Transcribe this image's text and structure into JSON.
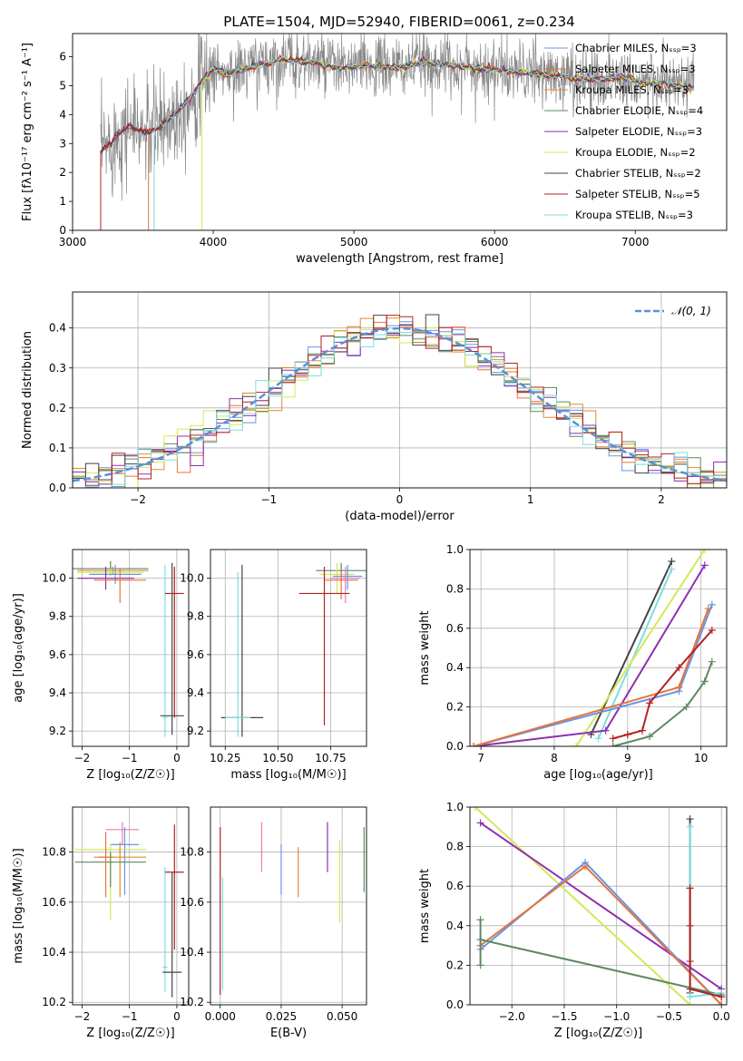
{
  "title": "PLATE=1504, MJD=52940, FIBERID=0061, z=0.234",
  "colors": {
    "chabrier_miles": "#6495ED",
    "salpeter_miles": "#E8733A",
    "kroupa_miles": "#E08C2E",
    "chabrier_elodie": "#5B8A5F",
    "salpeter_elodie": "#8E2FB0",
    "kroupa_elodie": "#D4E857",
    "chabrier_stelib": "#444444",
    "salpeter_stelib": "#B22222",
    "kroupa_stelib": "#7FDDDD",
    "pink": "#E87DB8",
    "gaussian": "#5B8FD9"
  },
  "chart_data": [
    {
      "id": "spectrum",
      "type": "line",
      "xlabel": "wavelength [Angstrom, rest frame]",
      "ylabel": "Flux [fλ10⁻¹⁷ erg cm⁻² s⁻¹ A⁻¹]",
      "xlim": [
        3000,
        7650
      ],
      "ylim": [
        0,
        6.8
      ],
      "xticks": [
        "3000",
        "4000",
        "5000",
        "6000",
        "7000"
      ],
      "yticks": [
        "0",
        "1",
        "2",
        "3",
        "4",
        "5",
        "6"
      ],
      "legend": {
        "placement": "right",
        "entries": [
          "Chabrier MILES, Nₛₛₚ=3",
          "Salpeter MILES, Nₛₛₚ=3",
          "Kroupa MILES, Nₛₛₚ=3",
          "Chabrier ELODIE, Nₛₛₚ=4",
          "Salpeter ELODIE, Nₛₛₚ=3",
          "Kroupa ELODIE, Nₛₛₚ=2",
          "Chabrier STELIB, Nₛₛₚ=2",
          "Salpeter STELIB, Nₛₛₚ=5",
          "Kroupa STELIB, Nₛₛₚ=3"
        ]
      },
      "model_x": [
        3200,
        3300,
        3400,
        3500,
        3600,
        3700,
        3800,
        3900,
        4000,
        4100,
        4300,
        4500,
        4700,
        4900,
        5100,
        5300,
        5500,
        5700,
        5900,
        6100,
        6300,
        6500,
        6700,
        6900,
        7100,
        7300,
        7400
      ],
      "model_y": [
        2.7,
        3.2,
        3.6,
        3.4,
        3.5,
        3.9,
        4.4,
        5.0,
        5.6,
        5.4,
        5.7,
        5.9,
        5.8,
        5.6,
        5.7,
        5.6,
        5.8,
        5.7,
        5.6,
        5.5,
        5.4,
        5.3,
        5.2,
        5.3,
        5.1,
        5.0,
        4.9
      ],
      "model_start_x": [
        3200,
        3540,
        3200,
        3200,
        3200,
        3920,
        3200,
        3200,
        3580
      ]
    },
    {
      "id": "residuals",
      "type": "histogram",
      "xlabel": "(data-model)/error",
      "ylabel": "Normed distribution",
      "xlim": [
        -2.5,
        2.5
      ],
      "ylim": [
        0,
        0.49
      ],
      "xticks": [
        "−2",
        "−1",
        "0",
        "1",
        "2"
      ],
      "yticks": [
        "0.0",
        "0.1",
        "0.2",
        "0.3",
        "0.4"
      ],
      "grid": true,
      "legend": {
        "placement": "top-right",
        "entries": [
          "𝒩(0, 1)"
        ]
      },
      "bin_width": 0.1
    },
    {
      "id": "age_vs_z",
      "type": "errorbar",
      "xlabel": "Z [log₁₀(Z/Z☉)]",
      "ylabel": "age  [log₁₀(age/yr)]",
      "xlim": [
        -2.2,
        0.25
      ],
      "ylim": [
        9.12,
        10.15
      ],
      "xticks": [
        "−2",
        "−1",
        "0"
      ],
      "yticks": [
        "9.2",
        "9.4",
        "9.6",
        "9.8",
        "10.0"
      ],
      "grid": true,
      "points": [
        {
          "x": -1.4,
          "xerr": 0.8,
          "y": 10.05,
          "yerr": [
            0.04,
            0.04
          ],
          "color": "chabrier_elodie"
        },
        {
          "x": -1.35,
          "xerr": 0.75,
          "y": 10.04,
          "yerr": [
            0.02,
            0.02
          ],
          "color": "kroupa_miles"
        },
        {
          "x": -1.4,
          "xerr": 0.7,
          "y": 10.03,
          "yerr": [
            0.02,
            0.02
          ],
          "color": "kroupa_elodie"
        },
        {
          "x": -1.3,
          "xerr": 0.55,
          "y": 10.02,
          "yerr": [
            0.05,
            0.05
          ],
          "color": "chabrier_miles"
        },
        {
          "x": -1.5,
          "xerr": 0.6,
          "y": 10.0,
          "yerr": [
            0.06,
            0.06
          ],
          "color": "salpeter_elodie"
        },
        {
          "x": -1.2,
          "xerr": 0.55,
          "y": 9.99,
          "yerr": [
            0.12,
            0.06
          ],
          "color": "salpeter_miles"
        },
        {
          "x": -0.25,
          "xerr": 0.05,
          "y": 9.27,
          "yerr": [
            0.1,
            0.8
          ],
          "color": "kroupa_stelib"
        },
        {
          "x": -0.1,
          "xerr": 0.25,
          "y": 9.28,
          "yerr": [
            0.1,
            0.8
          ],
          "color": "chabrier_stelib"
        },
        {
          "x": -0.05,
          "xerr": 0.2,
          "y": 9.92,
          "yerr": [
            0.65,
            0.14
          ],
          "color": "salpeter_stelib"
        }
      ]
    },
    {
      "id": "age_vs_mass",
      "type": "errorbar",
      "xlabel": "mass [log₁₀(M/M☉)]",
      "ylabel": "",
      "xlim": [
        10.18,
        10.92
      ],
      "ylim": [
        9.12,
        10.15
      ],
      "xticks": [
        "10.25",
        "10.50",
        "10.75"
      ],
      "yticks": [
        "9.2",
        "9.4",
        "9.6",
        "9.8",
        "10.0"
      ],
      "grid": true,
      "points": [
        {
          "x": 10.8,
          "xerr": 0.12,
          "y": 10.04,
          "yerr": [
            0.06,
            0.04
          ],
          "color": "chabrier_elodie"
        },
        {
          "x": 10.78,
          "xerr": 0.08,
          "y": 10.02,
          "yerr": [
            0.1,
            0.06
          ],
          "color": "kroupa_elodie"
        },
        {
          "x": 10.83,
          "xerr": 0.07,
          "y": 10.01,
          "yerr": [
            0.07,
            0.06
          ],
          "color": "chabrier_miles"
        },
        {
          "x": 10.82,
          "xerr": 0.07,
          "y": 10.0,
          "yerr": [
            0.13,
            0.06
          ],
          "color": "pink"
        },
        {
          "x": 10.8,
          "xerr": 0.08,
          "y": 9.99,
          "yerr": [
            0.1,
            0.05
          ],
          "color": "salpeter_miles"
        },
        {
          "x": 10.33,
          "xerr": 0.1,
          "y": 9.27,
          "yerr": [
            0.1,
            0.8
          ],
          "color": "chabrier_stelib"
        },
        {
          "x": 10.31,
          "xerr": 0.06,
          "y": 9.27,
          "yerr": [
            0.1,
            0.76
          ],
          "color": "kroupa_stelib"
        },
        {
          "x": 10.72,
          "xerr": 0.12,
          "y": 9.92,
          "yerr": [
            0.69,
            0.14
          ],
          "color": "salpeter_stelib"
        }
      ]
    },
    {
      "id": "weight_vs_age",
      "type": "line",
      "xlabel": "age  [log₁₀(age/yr)]",
      "ylabel": "mass weight",
      "xlim": [
        6.85,
        10.35
      ],
      "ylim": [
        0,
        1
      ],
      "xticks": [
        "7",
        "8",
        "9",
        "10"
      ],
      "yticks": [
        "0.0",
        "0.2",
        "0.4",
        "0.6",
        "0.8",
        "1.0"
      ],
      "grid": true,
      "series": [
        {
          "color": "chabrier_stelib",
          "x": [
            8.5,
            9.6
          ],
          "y": [
            0.06,
            0.94
          ]
        },
        {
          "color": "kroupa_stelib",
          "x": [
            8.6,
            9.6
          ],
          "y": [
            0.04,
            0.9
          ]
        },
        {
          "color": "kroupa_elodie",
          "x": [
            8.3,
            10.05
          ],
          "y": [
            0.0,
            1.0
          ]
        },
        {
          "color": "salpeter_elodie",
          "x": [
            6.9,
            8.7,
            10.05
          ],
          "y": [
            0.0,
            0.08,
            0.92
          ]
        },
        {
          "color": "chabrier_miles",
          "x": [
            6.9,
            9.7,
            10.15
          ],
          "y": [
            0.0,
            0.28,
            0.72
          ]
        },
        {
          "color": "salpeter_miles",
          "x": [
            6.9,
            9.7,
            10.1
          ],
          "y": [
            0.0,
            0.3,
            0.7
          ]
        },
        {
          "color": "salpeter_stelib",
          "x": [
            8.8,
            9.0,
            9.2,
            9.3,
            9.7,
            10.15
          ],
          "y": [
            0.04,
            0.06,
            0.08,
            0.22,
            0.4,
            0.59
          ]
        },
        {
          "color": "chabrier_elodie",
          "x": [
            8.8,
            9.3,
            9.8,
            10.05,
            10.15
          ],
          "y": [
            0.0,
            0.05,
            0.2,
            0.33,
            0.43
          ]
        }
      ]
    },
    {
      "id": "mass_vs_z",
      "type": "errorbar",
      "xlabel": "Z [log₁₀(Z/Z☉)]",
      "ylabel": "mass [log₁₀(M/M☉)]",
      "xlim": [
        -2.2,
        0.25
      ],
      "ylim": [
        10.19,
        10.98
      ],
      "xticks": [
        "−2",
        "−1",
        "0"
      ],
      "yticks": [
        "10.2",
        "10.4",
        "10.6",
        "10.8"
      ],
      "grid": true,
      "points": [
        {
          "x": -1.15,
          "xerr": 0.35,
          "y": 10.89,
          "yerr": [
            0.06,
            0.03
          ],
          "color": "pink"
        },
        {
          "x": -1.1,
          "xerr": 0.3,
          "y": 10.83,
          "yerr": [
            0.2,
            0.07
          ],
          "color": "chabrier_miles"
        },
        {
          "x": -1.4,
          "xerr": 0.75,
          "y": 10.81,
          "yerr": [
            0.28,
            0.02
          ],
          "color": "kroupa_elodie"
        },
        {
          "x": -1.2,
          "xerr": 0.55,
          "y": 10.78,
          "yerr": [
            0.16,
            0.06
          ],
          "color": "kroupa_miles"
        },
        {
          "x": -1.4,
          "xerr": 0.75,
          "y": 10.76,
          "yerr": [
            0.1,
            0.04
          ],
          "color": "chabrier_elodie"
        },
        {
          "x": -1.5,
          "xerr": 0.15,
          "y": 10.78,
          "yerr": [
            0.16,
            0.1
          ],
          "color": "salpeter_miles"
        },
        {
          "x": -0.25,
          "xerr": 0.05,
          "y": 10.34,
          "yerr": [
            0.1,
            0.4
          ],
          "color": "kroupa_stelib"
        },
        {
          "x": -0.1,
          "xerr": 0.2,
          "y": 10.32,
          "yerr": [
            0.1,
            0.4
          ],
          "color": "chabrier_stelib"
        },
        {
          "x": -0.05,
          "xerr": 0.2,
          "y": 10.72,
          "yerr": [
            0.31,
            0.19
          ],
          "color": "salpeter_stelib"
        }
      ]
    },
    {
      "id": "mass_vs_ebv",
      "type": "errorbar",
      "xlabel": "E(B-V)",
      "ylabel": "",
      "xlim": [
        -0.004,
        0.06
      ],
      "ylim": [
        10.19,
        10.98
      ],
      "xticks": [
        "0.000",
        "0.025",
        "0.050"
      ],
      "yticks": [
        "10.2",
        "10.4",
        "10.6",
        "10.8"
      ],
      "grid": true,
      "points": [
        {
          "x": 0.0,
          "y": 10.25,
          "yerr": [
            0.02,
            0.65
          ],
          "color": "salpeter_stelib"
        },
        {
          "x": 0.001,
          "y": 10.3,
          "yerr": [
            0.05,
            0.4
          ],
          "color": "kroupa_stelib"
        },
        {
          "x": 0.017,
          "y": 10.82,
          "yerr": [
            0.1,
            0.1
          ],
          "color": "pink"
        },
        {
          "x": 0.025,
          "y": 10.73,
          "yerr": [
            0.1,
            0.1
          ],
          "color": "chabrier_miles"
        },
        {
          "x": 0.032,
          "y": 10.72,
          "yerr": [
            0.1,
            0.1
          ],
          "color": "kroupa_miles"
        },
        {
          "x": 0.044,
          "y": 10.82,
          "yerr": [
            0.1,
            0.1
          ],
          "color": "salpeter_elodie"
        },
        {
          "x": 0.049,
          "y": 10.68,
          "yerr": [
            0.16,
            0.17
          ],
          "color": "kroupa_elodie"
        },
        {
          "x": 0.059,
          "y": 10.77,
          "yerr": [
            0.13,
            0.13
          ],
          "color": "chabrier_elodie"
        }
      ]
    },
    {
      "id": "weight_vs_z",
      "type": "line",
      "xlabel": "Z [log₁₀(Z/Z☉)]",
      "ylabel": "mass weight",
      "xlim": [
        -2.4,
        0.05
      ],
      "ylim": [
        0,
        1
      ],
      "xticks": [
        "−2.0",
        "−1.5",
        "−1.0",
        "−0.5",
        "0.0"
      ],
      "yticks": [
        "0.0",
        "0.2",
        "0.4",
        "0.6",
        "0.8",
        "1.0"
      ],
      "grid": true,
      "series": [
        {
          "color": "kroupa_elodie",
          "x": [
            -2.35,
            -0.3
          ],
          "y": [
            1.0,
            0.0
          ]
        },
        {
          "color": "salpeter_elodie",
          "x": [
            -2.3,
            0.0
          ],
          "y": [
            0.92,
            0.08
          ]
        },
        {
          "color": "chabrier_miles",
          "x": [
            -2.3,
            -1.3,
            0.0
          ],
          "y": [
            0.28,
            0.72,
            0.0
          ]
        },
        {
          "color": "salpeter_miles",
          "x": [
            -2.3,
            -1.3,
            0.0
          ],
          "y": [
            0.3,
            0.7,
            0.0
          ]
        },
        {
          "color": "chabrier_elodie",
          "x": [
            -2.3,
            -2.3,
            -2.3,
            -2.3,
            0.0
          ],
          "y": [
            0.43,
            0.2,
            0.33,
            0.33,
            0.05
          ]
        },
        {
          "color": "chabrier_stelib",
          "x": [
            -0.3,
            -0.3
          ],
          "y": [
            0.06,
            0.94
          ]
        },
        {
          "color": "kroupa_stelib",
          "x": [
            -0.3,
            -0.3,
            0.0
          ],
          "y": [
            0.9,
            0.04,
            0.06
          ]
        },
        {
          "color": "salpeter_stelib",
          "x": [
            -0.3,
            -0.3,
            -0.3,
            -0.3,
            0.0
          ],
          "y": [
            0.59,
            0.4,
            0.22,
            0.08,
            0.04
          ]
        }
      ]
    }
  ]
}
